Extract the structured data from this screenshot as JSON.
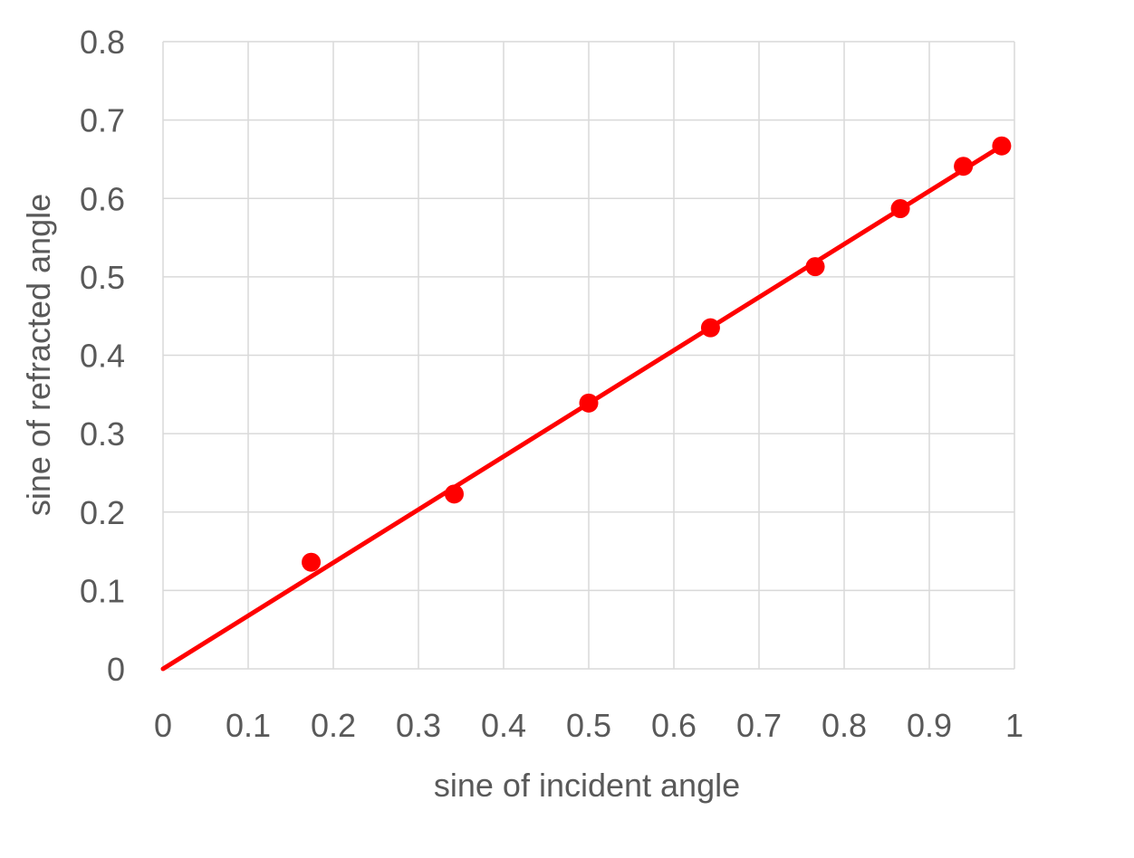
{
  "chart_data": {
    "type": "scatter",
    "title": "",
    "xlabel": "sine of incident angle",
    "ylabel": "sine of refracted angle",
    "xlim": [
      0,
      1
    ],
    "ylim": [
      0,
      0.8
    ],
    "x_ticks": [
      "0",
      "0.1",
      "0.2",
      "0.3",
      "0.4",
      "0.5",
      "0.6",
      "0.7",
      "0.8",
      "0.9",
      "1"
    ],
    "y_ticks": [
      "0",
      "0.1",
      "0.2",
      "0.3",
      "0.4",
      "0.5",
      "0.6",
      "0.7",
      "0.8"
    ],
    "grid": true,
    "legend": "none",
    "series": [
      {
        "marker_color": "#ff0000",
        "x": [
          0.174,
          0.342,
          0.5,
          0.643,
          0.766,
          0.866,
          0.94,
          0.985
        ],
        "y": [
          0.136,
          0.223,
          0.339,
          0.435,
          0.513,
          0.587,
          0.641,
          0.667
        ]
      }
    ],
    "trendline": {
      "type": "linear",
      "color": "#ff0000",
      "x": [
        0,
        0.985
      ],
      "y": [
        0,
        0.667
      ]
    }
  }
}
